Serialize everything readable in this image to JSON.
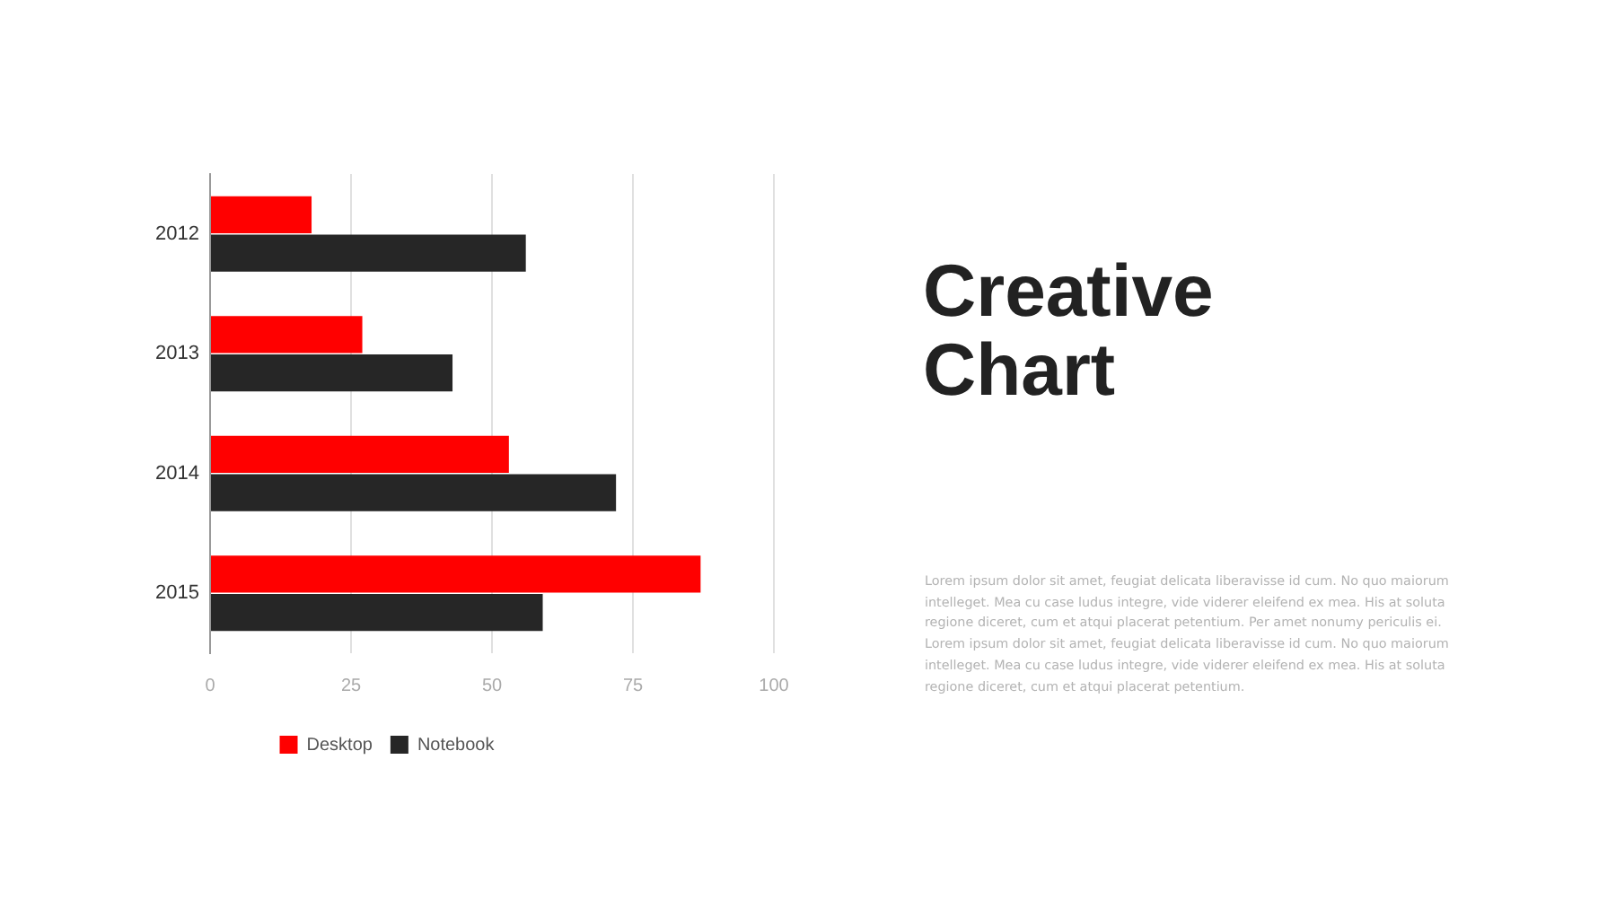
{
  "chart_data": {
    "type": "bar",
    "title": "Creative Chart",
    "orientation": "horizontal",
    "categories": [
      "2012",
      "2013",
      "2014",
      "2015"
    ],
    "series": [
      {
        "name": "Desktop",
        "color": "#ff0000",
        "values": [
          18,
          27,
          53,
          87
        ]
      },
      {
        "name": "Notebook",
        "color": "#262626",
        "values": [
          56,
          43,
          72,
          59
        ]
      }
    ],
    "xlim": [
      0,
      100
    ],
    "xticks": [
      0,
      25,
      50,
      75,
      100
    ],
    "grid": "x",
    "legend": "bottom",
    "annotations": [
      "Lorem ipsum dolor sit amet, feugiat delicata liberavisse id cum. No quo maiorum intelleget. Mea cu case ludus integre, vide viderer eleifend ex mea. His at soluta regione diceret, cum et atqui placerat petentium. Per amet nonumy periculis ei. Lorem ipsum dolor sit amet, feugiat delicata liberavisse id cum. No quo maiorum intelleget. Mea cu case ludus integre, vide viderer eleifend ex mea. His at soluta regione diceret, cum et atqui placerat petentium."
    ]
  }
}
